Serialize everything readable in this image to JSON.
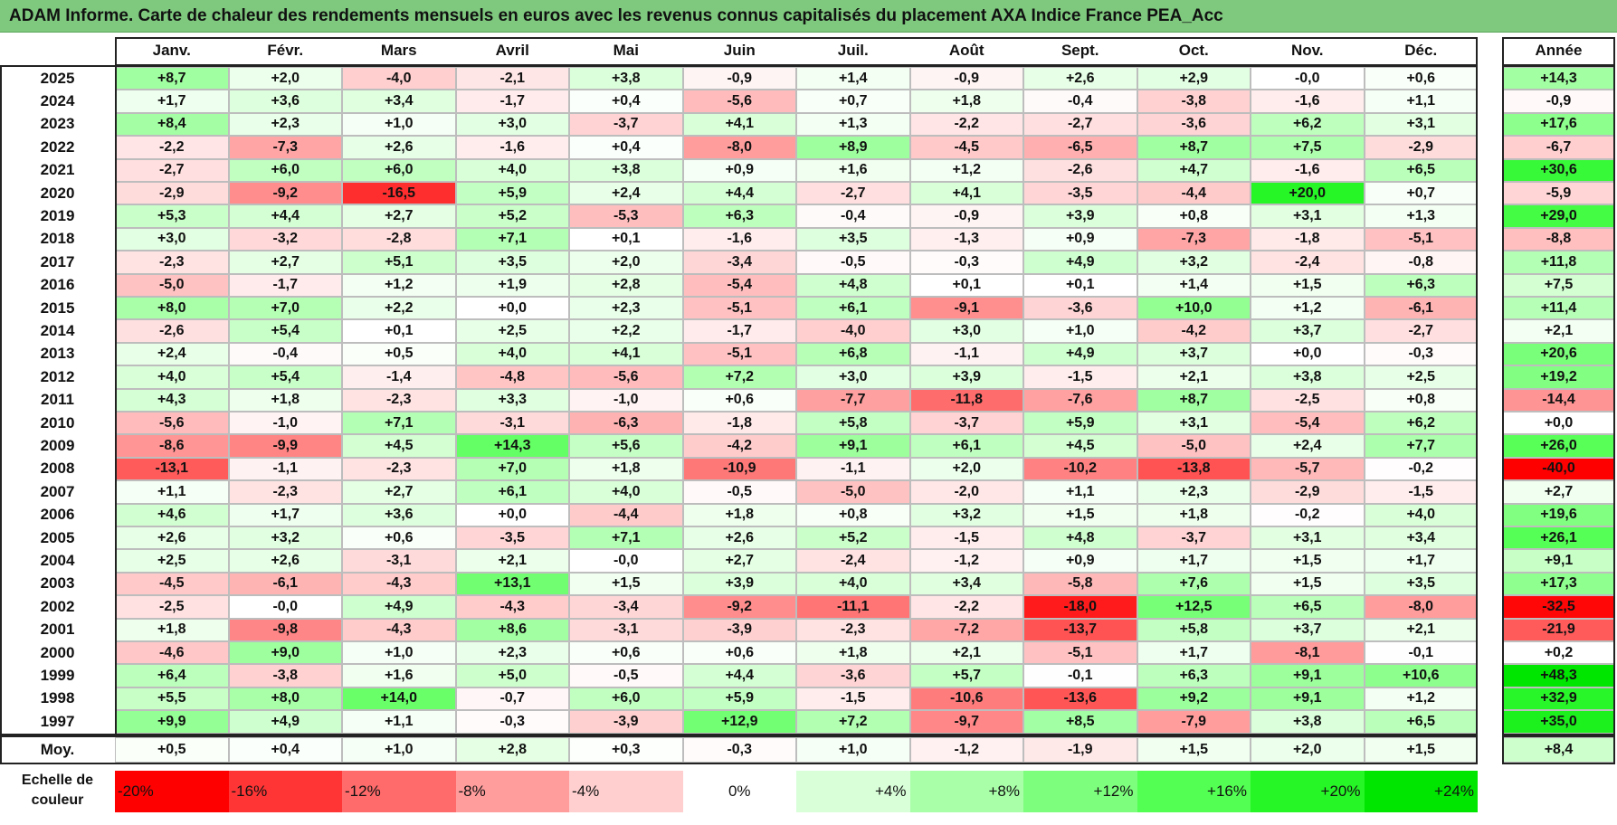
{
  "title": "ADAM Informe. Carte de chaleur des rendements mensuels en euros avec les revenus connus capitalisés du placement AXA Indice France PEA_Acc",
  "chart_data": {
    "type": "heatmap",
    "title": "ADAM Informe. Carte de chaleur des rendements mensuels en euros avec les revenus connus capitalisés du placement AXA Indice France PEA_Acc",
    "columns": [
      "Janv.",
      "Févr.",
      "Mars",
      "Avril",
      "Mai",
      "Juin",
      "Juil.",
      "Août",
      "Sept.",
      "Oct.",
      "Nov.",
      "Déc."
    ],
    "annual_header": "Année",
    "rows": [
      {
        "year": "2025",
        "values": [
          "+8,7",
          "+2,0",
          "-4,0",
          "-2,1",
          "+3,8",
          "-0,9",
          "+1,4",
          "-0,9",
          "+2,6",
          "+2,9",
          "-0,0",
          "+0,6"
        ],
        "annual": "+14,3"
      },
      {
        "year": "2024",
        "values": [
          "+1,7",
          "+3,6",
          "+3,4",
          "-1,7",
          "+0,4",
          "-5,6",
          "+0,7",
          "+1,8",
          "-0,4",
          "-3,8",
          "-1,6",
          "+1,1"
        ],
        "annual": "-0,9"
      },
      {
        "year": "2023",
        "values": [
          "+8,4",
          "+2,3",
          "+1,0",
          "+3,0",
          "-3,7",
          "+4,1",
          "+1,3",
          "-2,2",
          "-2,7",
          "-3,6",
          "+6,2",
          "+3,1"
        ],
        "annual": "+17,6"
      },
      {
        "year": "2022",
        "values": [
          "-2,2",
          "-7,3",
          "+2,6",
          "-1,6",
          "+0,4",
          "-8,0",
          "+8,9",
          "-4,5",
          "-6,5",
          "+8,7",
          "+7,5",
          "-2,9"
        ],
        "annual": "-6,7"
      },
      {
        "year": "2021",
        "values": [
          "-2,7",
          "+6,0",
          "+6,0",
          "+4,0",
          "+3,8",
          "+0,9",
          "+1,6",
          "+1,2",
          "-2,6",
          "+4,7",
          "-1,6",
          "+6,5"
        ],
        "annual": "+30,6"
      },
      {
        "year": "2020",
        "values": [
          "-2,9",
          "-9,2",
          "-16,5",
          "+5,9",
          "+2,4",
          "+4,4",
          "-2,7",
          "+4,1",
          "-3,5",
          "-4,4",
          "+20,0",
          "+0,7"
        ],
        "annual": "-5,9"
      },
      {
        "year": "2019",
        "values": [
          "+5,3",
          "+4,4",
          "+2,7",
          "+5,2",
          "-5,3",
          "+6,3",
          "-0,4",
          "-0,9",
          "+3,9",
          "+0,8",
          "+3,1",
          "+1,3"
        ],
        "annual": "+29,0"
      },
      {
        "year": "2018",
        "values": [
          "+3,0",
          "-3,2",
          "-2,8",
          "+7,1",
          "+0,1",
          "-1,6",
          "+3,5",
          "-1,3",
          "+0,9",
          "-7,3",
          "-1,8",
          "-5,1"
        ],
        "annual": "-8,8"
      },
      {
        "year": "2017",
        "values": [
          "-2,3",
          "+2,7",
          "+5,1",
          "+3,5",
          "+2,0",
          "-3,4",
          "-0,5",
          "-0,3",
          "+4,9",
          "+3,2",
          "-2,4",
          "-0,8"
        ],
        "annual": "+11,8"
      },
      {
        "year": "2016",
        "values": [
          "-5,0",
          "-1,7",
          "+1,2",
          "+1,9",
          "+2,8",
          "-5,4",
          "+4,8",
          "+0,1",
          "+0,1",
          "+1,4",
          "+1,5",
          "+6,3"
        ],
        "annual": "+7,5"
      },
      {
        "year": "2015",
        "values": [
          "+8,0",
          "+7,0",
          "+2,2",
          "+0,0",
          "+2,3",
          "-5,1",
          "+6,1",
          "-9,1",
          "-3,6",
          "+10,0",
          "+1,2",
          "-6,1"
        ],
        "annual": "+11,4"
      },
      {
        "year": "2014",
        "values": [
          "-2,6",
          "+5,4",
          "+0,1",
          "+2,5",
          "+2,2",
          "-1,7",
          "-4,0",
          "+3,0",
          "+1,0",
          "-4,2",
          "+3,7",
          "-2,7"
        ],
        "annual": "+2,1"
      },
      {
        "year": "2013",
        "values": [
          "+2,4",
          "-0,4",
          "+0,5",
          "+4,0",
          "+4,1",
          "-5,1",
          "+6,8",
          "-1,1",
          "+4,9",
          "+3,7",
          "+0,0",
          "-0,3"
        ],
        "annual": "+20,6"
      },
      {
        "year": "2012",
        "values": [
          "+4,0",
          "+5,4",
          "-1,4",
          "-4,8",
          "-5,6",
          "+7,2",
          "+3,0",
          "+3,9",
          "-1,5",
          "+2,1",
          "+3,8",
          "+2,5"
        ],
        "annual": "+19,2"
      },
      {
        "year": "2011",
        "values": [
          "+4,3",
          "+1,8",
          "-2,3",
          "+3,3",
          "-1,0",
          "+0,6",
          "-7,7",
          "-11,8",
          "-7,6",
          "+8,7",
          "-2,5",
          "+0,8"
        ],
        "annual": "-14,4"
      },
      {
        "year": "2010",
        "values": [
          "-5,6",
          "-1,0",
          "+7,1",
          "-3,1",
          "-6,3",
          "-1,8",
          "+5,8",
          "-3,7",
          "+5,9",
          "+3,1",
          "-5,4",
          "+6,2"
        ],
        "annual": "+0,0"
      },
      {
        "year": "2009",
        "values": [
          "-8,6",
          "-9,9",
          "+4,5",
          "+14,3",
          "+5,6",
          "-4,2",
          "+9,1",
          "+6,1",
          "+4,5",
          "-5,0",
          "+2,4",
          "+7,7"
        ],
        "annual": "+26,0"
      },
      {
        "year": "2008",
        "values": [
          "-13,1",
          "-1,1",
          "-2,3",
          "+7,0",
          "+1,8",
          "-10,9",
          "-1,1",
          "+2,0",
          "-10,2",
          "-13,8",
          "-5,7",
          "-0,2"
        ],
        "annual": "-40,0"
      },
      {
        "year": "2007",
        "values": [
          "+1,1",
          "-2,3",
          "+2,7",
          "+6,1",
          "+4,0",
          "-0,5",
          "-5,0",
          "-2,0",
          "+1,1",
          "+2,3",
          "-2,9",
          "-1,5"
        ],
        "annual": "+2,7"
      },
      {
        "year": "2006",
        "values": [
          "+4,6",
          "+1,7",
          "+3,6",
          "+0,0",
          "-4,4",
          "+1,8",
          "+0,8",
          "+3,2",
          "+1,5",
          "+1,8",
          "-0,2",
          "+4,0"
        ],
        "annual": "+19,6"
      },
      {
        "year": "2005",
        "values": [
          "+2,6",
          "+3,2",
          "+0,6",
          "-3,5",
          "+7,1",
          "+2,6",
          "+5,2",
          "-1,5",
          "+4,8",
          "-3,7",
          "+3,1",
          "+3,4"
        ],
        "annual": "+26,1"
      },
      {
        "year": "2004",
        "values": [
          "+2,5",
          "+2,6",
          "-3,1",
          "+2,1",
          "-0,0",
          "+2,7",
          "-2,4",
          "-1,2",
          "+0,9",
          "+1,7",
          "+1,5",
          "+1,7"
        ],
        "annual": "+9,1"
      },
      {
        "year": "2003",
        "values": [
          "-4,5",
          "-6,1",
          "-4,3",
          "+13,1",
          "+1,5",
          "+3,9",
          "+4,0",
          "+3,4",
          "-5,8",
          "+7,6",
          "+1,5",
          "+3,5"
        ],
        "annual": "+17,3"
      },
      {
        "year": "2002",
        "values": [
          "-2,5",
          "-0,0",
          "+4,9",
          "-4,3",
          "-3,4",
          "-9,2",
          "-11,1",
          "-2,2",
          "-18,0",
          "+12,5",
          "+6,5",
          "-8,0"
        ],
        "annual": "-32,5"
      },
      {
        "year": "2001",
        "values": [
          "+1,8",
          "-9,8",
          "-4,3",
          "+8,6",
          "-3,1",
          "-3,9",
          "-2,3",
          "-7,2",
          "-13,7",
          "+5,8",
          "+3,7",
          "+2,1"
        ],
        "annual": "-21,9"
      },
      {
        "year": "2000",
        "values": [
          "-4,6",
          "+9,0",
          "+1,0",
          "+2,3",
          "+0,6",
          "+0,6",
          "+1,8",
          "+2,1",
          "-5,1",
          "+1,7",
          "-8,1",
          "-0,1"
        ],
        "annual": "+0,2"
      },
      {
        "year": "1999",
        "values": [
          "+6,4",
          "-3,8",
          "+1,6",
          "+5,0",
          "-0,5",
          "+4,4",
          "-3,6",
          "+5,7",
          "-0,1",
          "+6,3",
          "+9,1",
          "+10,6"
        ],
        "annual": "+48,3"
      },
      {
        "year": "1998",
        "values": [
          "+5,5",
          "+8,0",
          "+14,0",
          "-0,7",
          "+6,0",
          "+5,9",
          "-1,5",
          "-10,6",
          "-13,6",
          "+9,2",
          "+9,1",
          "+1,2"
        ],
        "annual": "+32,9"
      },
      {
        "year": "1997",
        "values": [
          "+9,9",
          "+4,9",
          "+1,1",
          "-0,3",
          "-3,9",
          "+12,9",
          "+7,2",
          "-9,7",
          "+8,5",
          "-7,9",
          "+3,8",
          "+6,5"
        ],
        "annual": "+35,0"
      }
    ],
    "average": {
      "label": "Moy.",
      "values": [
        "+0,5",
        "+0,4",
        "+1,0",
        "+2,8",
        "+0,3",
        "-0,3",
        "+1,0",
        "-1,2",
        "-1,9",
        "+1,5",
        "+2,0",
        "+1,5"
      ],
      "annual": "+8,4"
    },
    "color_scale": {
      "label": "Echelle de couleur",
      "stops": [
        {
          "label": "-20%",
          "value": -20,
          "color": "#ff0000"
        },
        {
          "label": "-16%",
          "value": -16,
          "color": "#ff3535"
        },
        {
          "label": "-12%",
          "value": -12,
          "color": "#ff6a6a"
        },
        {
          "label": "-8%",
          "value": -8,
          "color": "#ff9c9c"
        },
        {
          "label": "-4%",
          "value": -4,
          "color": "#ffcfcf"
        },
        {
          "label": "0%",
          "value": 0,
          "color": "#ffffff"
        },
        {
          "label": "+4%",
          "value": 4,
          "color": "#d9ffd9"
        },
        {
          "label": "+8%",
          "value": 8,
          "color": "#a8ffa8"
        },
        {
          "label": "+12%",
          "value": 12,
          "color": "#7dff7d"
        },
        {
          "label": "+16%",
          "value": 16,
          "color": "#52ff52"
        },
        {
          "label": "+20%",
          "value": 20,
          "color": "#26f526"
        },
        {
          "label": "+24%",
          "value": 24,
          "color": "#00e600"
        }
      ]
    }
  }
}
